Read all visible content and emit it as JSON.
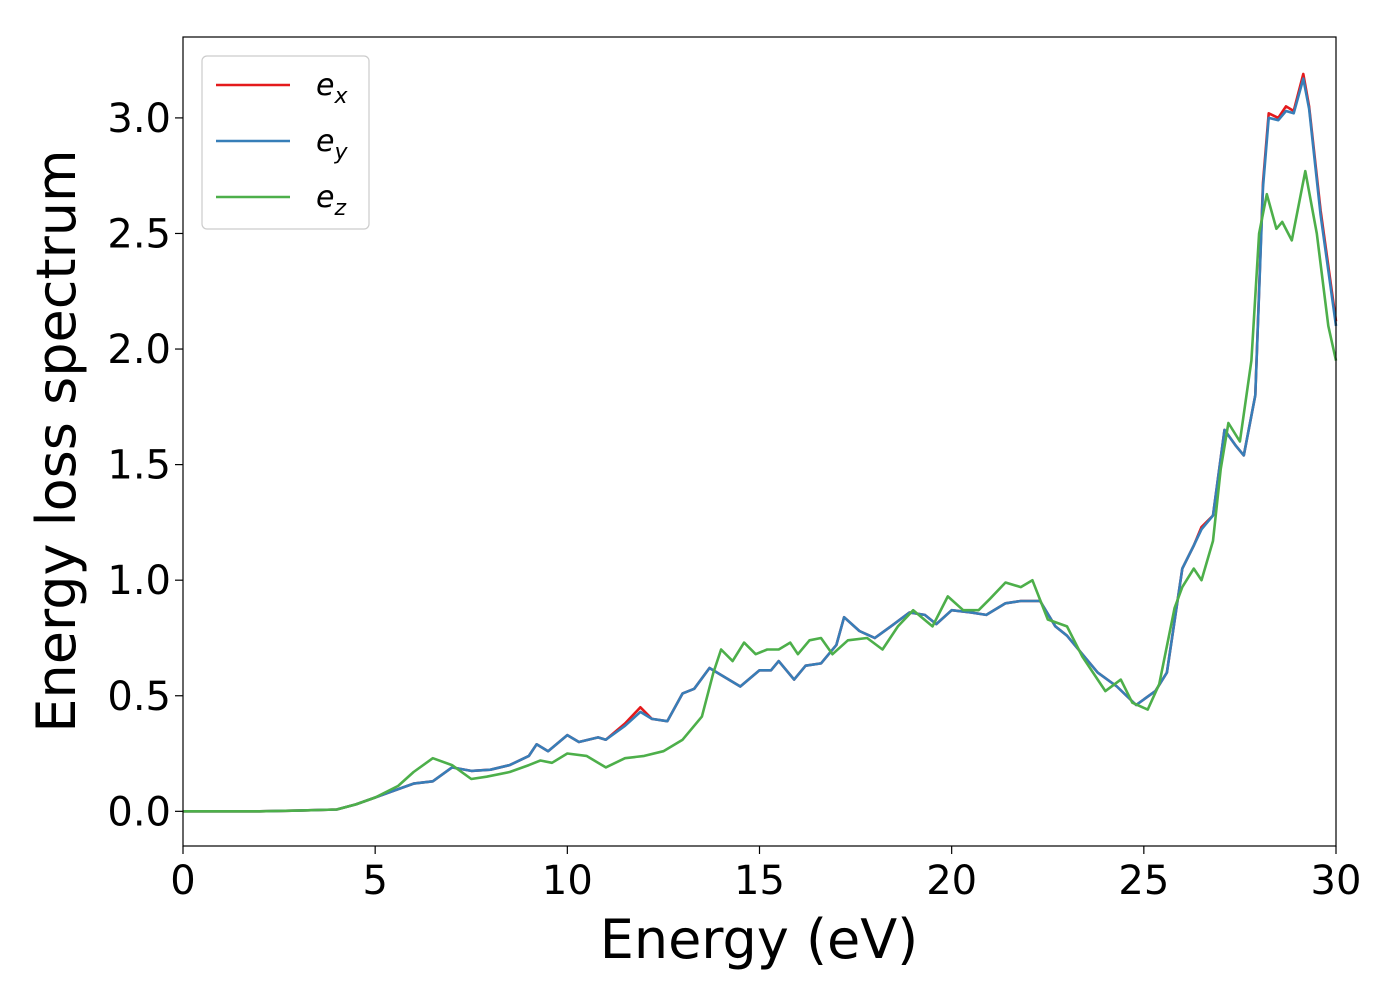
{
  "chart_data": {
    "type": "line",
    "title": "",
    "xlabel": "Energy (eV)",
    "ylabel": "Energy loss spectrum",
    "xlim": [
      0,
      30
    ],
    "ylim": [
      -0.15,
      3.35
    ],
    "xticks": [
      0,
      5,
      10,
      15,
      20,
      25,
      30
    ],
    "xtick_labels": [
      "0",
      "5",
      "10",
      "15",
      "20",
      "25",
      "30"
    ],
    "yticks": [
      0.0,
      0.5,
      1.0,
      1.5,
      2.0,
      2.5,
      3.0
    ],
    "ytick_labels": [
      "0.0",
      "0.5",
      "1.0",
      "1.5",
      "2.0",
      "2.5",
      "3.0"
    ],
    "grid": false,
    "legend_position": "top-left",
    "series": [
      {
        "name": "e_x",
        "legend_base": "e",
        "legend_sub": "x",
        "color": "#e41a1c",
        "points": [
          [
            0,
            0
          ],
          [
            2,
            0
          ],
          [
            3,
            0.003
          ],
          [
            4,
            0.008
          ],
          [
            4.5,
            0.03
          ],
          [
            5,
            0.06
          ],
          [
            5.5,
            0.09
          ],
          [
            6,
            0.12
          ],
          [
            6.5,
            0.13
          ],
          [
            7,
            0.19
          ],
          [
            7.5,
            0.175
          ],
          [
            8,
            0.18
          ],
          [
            8.5,
            0.2
          ],
          [
            9,
            0.24
          ],
          [
            9.2,
            0.29
          ],
          [
            9.5,
            0.26
          ],
          [
            10,
            0.33
          ],
          [
            10.3,
            0.3
          ],
          [
            10.8,
            0.32
          ],
          [
            11,
            0.31
          ],
          [
            11.5,
            0.38
          ],
          [
            11.9,
            0.45
          ],
          [
            12.2,
            0.4
          ],
          [
            12.6,
            0.39
          ],
          [
            13,
            0.51
          ],
          [
            13.3,
            0.53
          ],
          [
            13.7,
            0.62
          ],
          [
            14,
            0.59
          ],
          [
            14.5,
            0.54
          ],
          [
            15,
            0.61
          ],
          [
            15.3,
            0.61
          ],
          [
            15.5,
            0.65
          ],
          [
            15.9,
            0.57
          ],
          [
            16.2,
            0.63
          ],
          [
            16.6,
            0.64
          ],
          [
            17,
            0.72
          ],
          [
            17.2,
            0.84
          ],
          [
            17.6,
            0.78
          ],
          [
            18,
            0.75
          ],
          [
            18.5,
            0.81
          ],
          [
            18.9,
            0.86
          ],
          [
            19.3,
            0.85
          ],
          [
            19.6,
            0.81
          ],
          [
            20,
            0.87
          ],
          [
            20.5,
            0.86
          ],
          [
            20.9,
            0.85
          ],
          [
            21.4,
            0.9
          ],
          [
            21.8,
            0.91
          ],
          [
            22.3,
            0.91
          ],
          [
            22.7,
            0.8
          ],
          [
            23,
            0.76
          ],
          [
            23.5,
            0.66
          ],
          [
            23.8,
            0.6
          ],
          [
            24.3,
            0.54
          ],
          [
            24.8,
            0.46
          ],
          [
            25.3,
            0.52
          ],
          [
            25.6,
            0.6
          ],
          [
            26,
            1.05
          ],
          [
            26.3,
            1.15
          ],
          [
            26.5,
            1.23
          ],
          [
            26.8,
            1.28
          ],
          [
            27.1,
            1.65
          ],
          [
            27.4,
            1.58
          ],
          [
            27.6,
            1.54
          ],
          [
            27.9,
            1.8
          ],
          [
            28.1,
            2.72
          ],
          [
            28.25,
            3.02
          ],
          [
            28.5,
            3.0
          ],
          [
            28.7,
            3.05
          ],
          [
            28.9,
            3.03
          ],
          [
            29.15,
            3.19
          ],
          [
            29.3,
            3.05
          ],
          [
            29.6,
            2.6
          ],
          [
            30,
            2.12
          ]
        ]
      },
      {
        "name": "e_y",
        "legend_base": "e",
        "legend_sub": "y",
        "color": "#377eb8",
        "points": [
          [
            0,
            0
          ],
          [
            2,
            0
          ],
          [
            3,
            0.003
          ],
          [
            4,
            0.008
          ],
          [
            4.5,
            0.03
          ],
          [
            5,
            0.06
          ],
          [
            5.5,
            0.09
          ],
          [
            6,
            0.12
          ],
          [
            6.5,
            0.13
          ],
          [
            7,
            0.19
          ],
          [
            7.5,
            0.175
          ],
          [
            8,
            0.18
          ],
          [
            8.5,
            0.2
          ],
          [
            9,
            0.24
          ],
          [
            9.2,
            0.29
          ],
          [
            9.5,
            0.26
          ],
          [
            10,
            0.33
          ],
          [
            10.3,
            0.3
          ],
          [
            10.8,
            0.32
          ],
          [
            11,
            0.31
          ],
          [
            11.5,
            0.37
          ],
          [
            11.9,
            0.43
          ],
          [
            12.2,
            0.4
          ],
          [
            12.6,
            0.39
          ],
          [
            13,
            0.51
          ],
          [
            13.3,
            0.53
          ],
          [
            13.7,
            0.62
          ],
          [
            14,
            0.59
          ],
          [
            14.5,
            0.54
          ],
          [
            15,
            0.61
          ],
          [
            15.3,
            0.61
          ],
          [
            15.5,
            0.65
          ],
          [
            15.9,
            0.57
          ],
          [
            16.2,
            0.63
          ],
          [
            16.6,
            0.64
          ],
          [
            17,
            0.72
          ],
          [
            17.2,
            0.84
          ],
          [
            17.6,
            0.78
          ],
          [
            18,
            0.75
          ],
          [
            18.5,
            0.81
          ],
          [
            18.9,
            0.86
          ],
          [
            19.3,
            0.85
          ],
          [
            19.6,
            0.81
          ],
          [
            20,
            0.87
          ],
          [
            20.5,
            0.86
          ],
          [
            20.9,
            0.85
          ],
          [
            21.4,
            0.9
          ],
          [
            21.8,
            0.91
          ],
          [
            22.3,
            0.91
          ],
          [
            22.7,
            0.8
          ],
          [
            23,
            0.76
          ],
          [
            23.5,
            0.66
          ],
          [
            23.8,
            0.6
          ],
          [
            24.3,
            0.54
          ],
          [
            24.8,
            0.46
          ],
          [
            25.3,
            0.52
          ],
          [
            25.6,
            0.6
          ],
          [
            26,
            1.05
          ],
          [
            26.3,
            1.15
          ],
          [
            26.5,
            1.22
          ],
          [
            26.8,
            1.28
          ],
          [
            27.1,
            1.65
          ],
          [
            27.4,
            1.58
          ],
          [
            27.6,
            1.54
          ],
          [
            27.9,
            1.8
          ],
          [
            28.1,
            2.7
          ],
          [
            28.25,
            3.0
          ],
          [
            28.5,
            2.99
          ],
          [
            28.7,
            3.03
          ],
          [
            28.9,
            3.02
          ],
          [
            29.15,
            3.17
          ],
          [
            29.3,
            3.04
          ],
          [
            29.6,
            2.58
          ],
          [
            30,
            2.1
          ]
        ]
      },
      {
        "name": "e_z",
        "legend_base": "e",
        "legend_sub": "z",
        "color": "#4daf4a",
        "points": [
          [
            0,
            0
          ],
          [
            2,
            0
          ],
          [
            3,
            0.003
          ],
          [
            4,
            0.008
          ],
          [
            4.5,
            0.03
          ],
          [
            5,
            0.06
          ],
          [
            5.6,
            0.11
          ],
          [
            6,
            0.17
          ],
          [
            6.5,
            0.23
          ],
          [
            7,
            0.2
          ],
          [
            7.5,
            0.14
          ],
          [
            7.9,
            0.15
          ],
          [
            8.5,
            0.17
          ],
          [
            9,
            0.2
          ],
          [
            9.3,
            0.22
          ],
          [
            9.6,
            0.21
          ],
          [
            10,
            0.25
          ],
          [
            10.5,
            0.24
          ],
          [
            11,
            0.19
          ],
          [
            11.5,
            0.23
          ],
          [
            12,
            0.24
          ],
          [
            12.5,
            0.26
          ],
          [
            13,
            0.31
          ],
          [
            13.5,
            0.41
          ],
          [
            13.8,
            0.6
          ],
          [
            14,
            0.7
          ],
          [
            14.3,
            0.65
          ],
          [
            14.6,
            0.73
          ],
          [
            14.9,
            0.68
          ],
          [
            15.2,
            0.7
          ],
          [
            15.5,
            0.7
          ],
          [
            15.8,
            0.73
          ],
          [
            16,
            0.68
          ],
          [
            16.3,
            0.74
          ],
          [
            16.6,
            0.75
          ],
          [
            16.9,
            0.68
          ],
          [
            17.3,
            0.74
          ],
          [
            17.8,
            0.75
          ],
          [
            18.2,
            0.7
          ],
          [
            18.6,
            0.8
          ],
          [
            19,
            0.87
          ],
          [
            19.5,
            0.8
          ],
          [
            19.9,
            0.93
          ],
          [
            20.3,
            0.87
          ],
          [
            20.7,
            0.87
          ],
          [
            21,
            0.92
          ],
          [
            21.4,
            0.99
          ],
          [
            21.8,
            0.97
          ],
          [
            22.1,
            1.0
          ],
          [
            22.5,
            0.83
          ],
          [
            23,
            0.8
          ],
          [
            23.4,
            0.67
          ],
          [
            23.8,
            0.57
          ],
          [
            24,
            0.52
          ],
          [
            24.4,
            0.57
          ],
          [
            24.7,
            0.47
          ],
          [
            25.1,
            0.44
          ],
          [
            25.4,
            0.55
          ],
          [
            25.8,
            0.88
          ],
          [
            26,
            0.97
          ],
          [
            26.3,
            1.05
          ],
          [
            26.5,
            1.0
          ],
          [
            26.8,
            1.17
          ],
          [
            27,
            1.48
          ],
          [
            27.2,
            1.68
          ],
          [
            27.5,
            1.6
          ],
          [
            27.8,
            1.95
          ],
          [
            28.0,
            2.5
          ],
          [
            28.2,
            2.67
          ],
          [
            28.45,
            2.52
          ],
          [
            28.6,
            2.55
          ],
          [
            28.85,
            2.47
          ],
          [
            29.2,
            2.77
          ],
          [
            29.5,
            2.5
          ],
          [
            29.8,
            2.1
          ],
          [
            30,
            1.95
          ]
        ]
      }
    ]
  }
}
